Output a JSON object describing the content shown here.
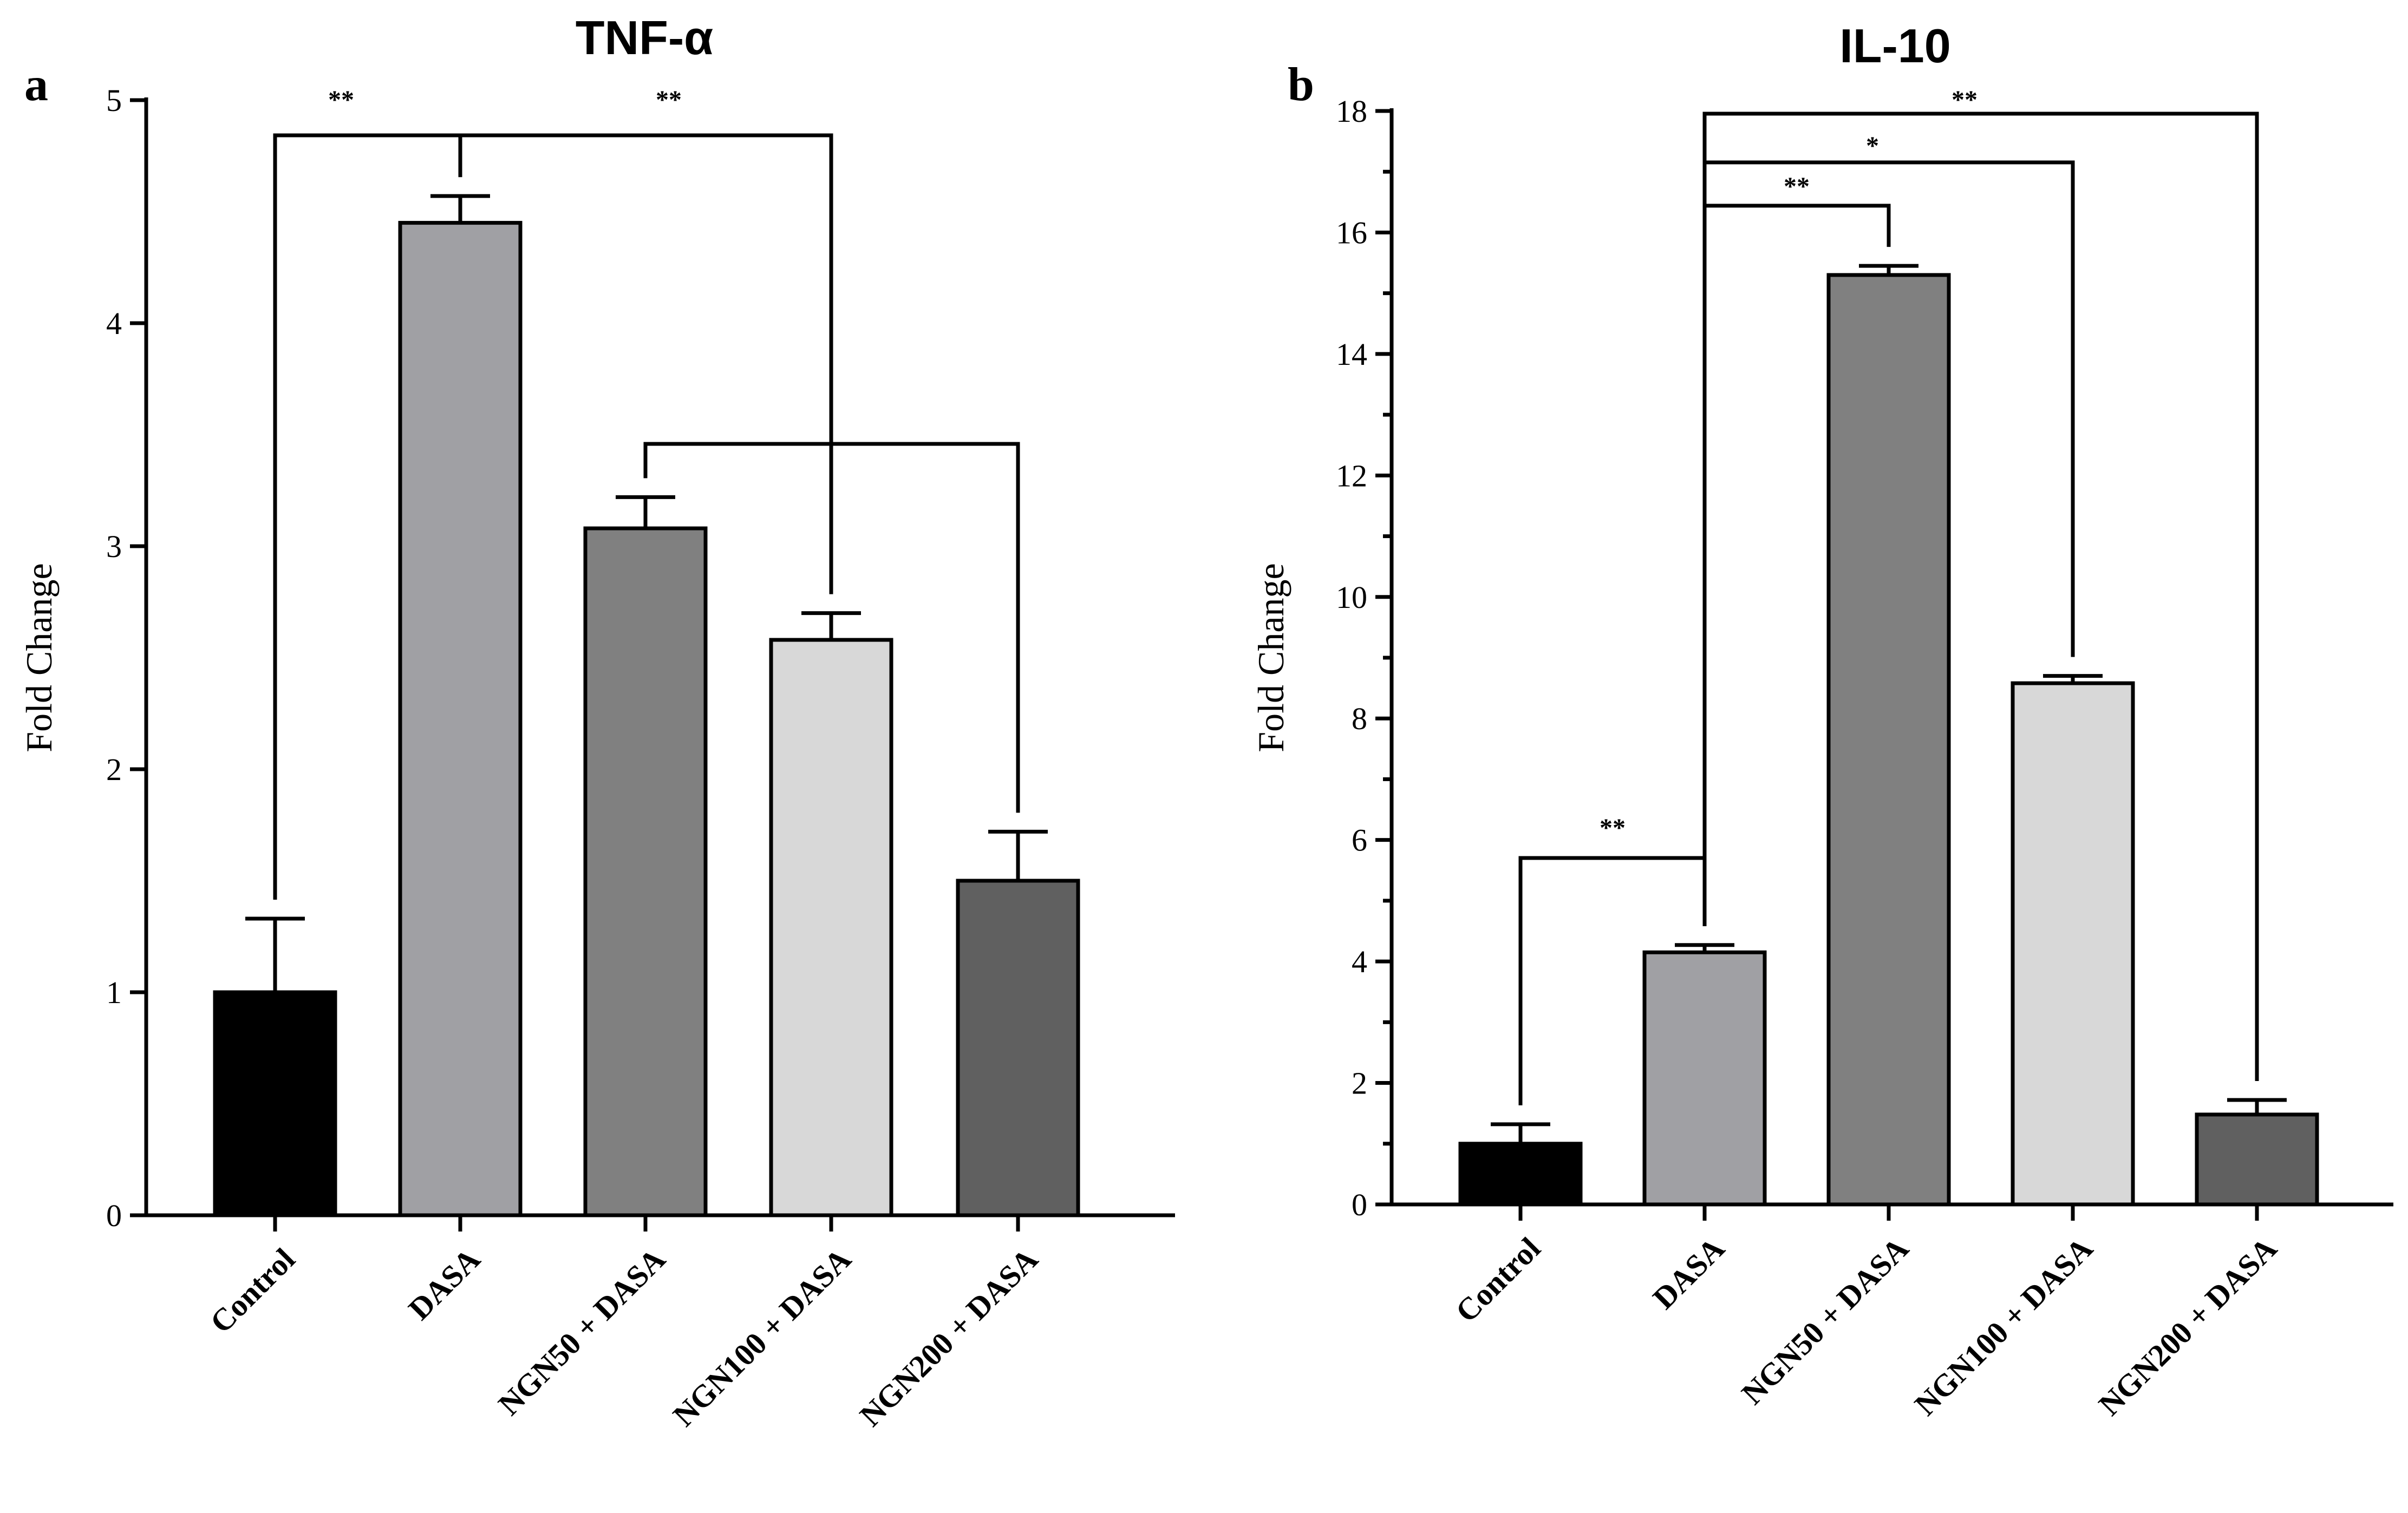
{
  "chart_data": [
    {
      "type": "bar",
      "panel": "a",
      "title": "TNF-α",
      "xlabel": "",
      "ylabel": "Fold Change",
      "ylim": [
        0,
        5
      ],
      "yticks": [
        0,
        1,
        2,
        3,
        4,
        5
      ],
      "categories": [
        "Control",
        "DASA",
        "NGN50 + DASA",
        "NGN100 + DASA",
        "NGN200 + DASA"
      ],
      "values": [
        1.0,
        4.45,
        3.08,
        2.58,
        1.5
      ],
      "errors": [
        0.33,
        0.12,
        0.14,
        0.12,
        0.22
      ],
      "colors": [
        "#000000",
        "#a0a0a4",
        "#808080",
        "#d8d8d8",
        "#606060"
      ],
      "significance": [
        {
          "from": 0,
          "to": 1,
          "label": "**"
        },
        {
          "from": 1,
          "to": 3,
          "label": "**"
        },
        {
          "from": 2,
          "to": 4,
          "label": ""
        }
      ]
    },
    {
      "type": "bar",
      "panel": "b",
      "title": "IL-10",
      "xlabel": "",
      "ylabel": "Fold Change",
      "ylim": [
        0,
        18
      ],
      "yticks": [
        0,
        2,
        4,
        6,
        8,
        10,
        12,
        14,
        16,
        18
      ],
      "categories": [
        "Control",
        "DASA",
        "NGN50 + DASA",
        "NGN100 + DASA",
        "NGN200 + DASA"
      ],
      "values": [
        1.0,
        4.15,
        15.3,
        8.58,
        1.48
      ],
      "errors": [
        0.32,
        0.12,
        0.15,
        0.12,
        0.24
      ],
      "colors": [
        "#000000",
        "#a0a0a4",
        "#808080",
        "#d8d8d8",
        "#606060"
      ],
      "significance": [
        {
          "from": 0,
          "to": 1,
          "label": "**"
        },
        {
          "from": 1,
          "to": 2,
          "label": "**"
        },
        {
          "from": 1,
          "to": 3,
          "label": "*"
        },
        {
          "from": 1,
          "to": 4,
          "label": "**"
        }
      ]
    }
  ]
}
